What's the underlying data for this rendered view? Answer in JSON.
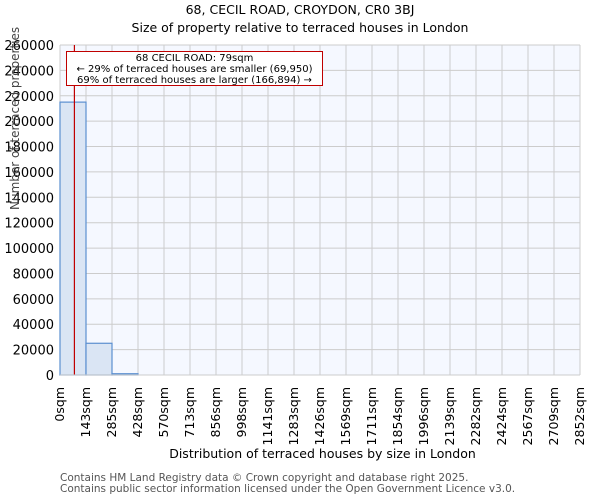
{
  "header": {
    "title": "68, CECIL ROAD, CROYDON, CR0 3BJ",
    "subtitle": "Size of property relative to terraced houses in London"
  },
  "annotation": {
    "line1": "68 CECIL ROAD: 79sqm",
    "line2": "← 29% of terraced houses are smaller (69,950)",
    "line3": "69% of terraced houses are larger (166,894) →"
  },
  "footer": {
    "line1": "Contains HM Land Registry data © Crown copyright and database right 2025.",
    "line2": "Contains public sector information licensed under the Open Government Licence v3.0."
  },
  "colors": {
    "bar_fill": "#dae5f4",
    "bar_edge": "#5b8fd0",
    "marker": "#c00000",
    "plot_bg": "#f5f8ff",
    "grid": "#cccccc"
  },
  "chart_data": {
    "type": "bar",
    "title": "68, CECIL ROAD, CROYDON, CR0 3BJ",
    "subtitle": "Size of property relative to terraced houses in London",
    "xlabel": "Distribution of terraced houses by size in London",
    "ylabel": "Number of terraced properties",
    "categories": [
      "0sqm",
      "143sqm",
      "285sqm",
      "428sqm",
      "570sqm",
      "713sqm",
      "856sqm",
      "998sqm",
      "1141sqm",
      "1283sqm",
      "1426sqm",
      "1569sqm",
      "1711sqm",
      "1854sqm",
      "1996sqm",
      "2139sqm",
      "2282sqm",
      "2424sqm",
      "2567sqm",
      "2709sqm",
      "2852sqm"
    ],
    "values": [
      215000,
      25000,
      1000,
      0,
      0,
      0,
      0,
      0,
      0,
      0,
      0,
      0,
      0,
      0,
      0,
      0,
      0,
      0,
      0,
      0
    ],
    "yticks": [
      0,
      20000,
      40000,
      60000,
      80000,
      100000,
      120000,
      140000,
      160000,
      180000,
      200000,
      220000,
      240000,
      260000
    ],
    "ylim": [
      0,
      260000
    ],
    "grid": true,
    "marker": {
      "x_sqm": 79,
      "label": "68 CECIL ROAD: 79sqm"
    },
    "annotations": [
      "68 CECIL ROAD: 79sqm",
      "← 29% of terraced houses are smaller (69,950)",
      "69% of terraced houses are larger (166,894) →"
    ]
  }
}
